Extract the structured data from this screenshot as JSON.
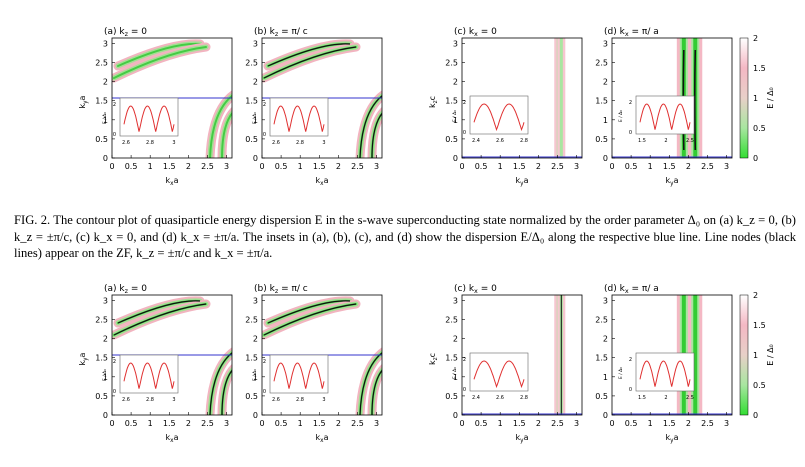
{
  "figures": [
    {
      "panels": [
        {
          "label": "(a) k",
          "sub": "z",
          "eq": " = 0",
          "xlabel": "k",
          "xsub": "x",
          "xunit": "a",
          "ylabel": "k",
          "ysub": "y",
          "yunit": "a",
          "xticks": [
            "0",
            "0.5",
            "1",
            "1.5",
            "2",
            "2.5",
            "3"
          ],
          "yticks": [
            "0",
            "0.5",
            "1",
            "1.5",
            "2",
            "2.5",
            "3"
          ],
          "type": "ab",
          "inset_xticks": [
            "2.6",
            "2.8",
            "3"
          ],
          "inset_yticks": [
            "0",
            "2"
          ],
          "inset_ylabel": "E / Δ₀"
        },
        {
          "label": "(b) k",
          "sub": "z",
          "eq": " = π/ c",
          "xlabel": "k",
          "xsub": "x",
          "xunit": "a",
          "ylabel": "",
          "ysub": "",
          "yunit": "",
          "xticks": [
            "0",
            "0.5",
            "1",
            "1.5",
            "2",
            "2.5",
            "3"
          ],
          "yticks": [
            "0",
            "0.5",
            "1",
            "1.5",
            "2",
            "2.5",
            "3"
          ],
          "type": "ab",
          "inset_xticks": [
            "2.6",
            "2.8",
            "3"
          ],
          "inset_yticks": [
            "0",
            "2"
          ],
          "inset_ylabel": "E / Δ₀"
        },
        {
          "label": "(c) k",
          "sub": "x",
          "eq": " = 0",
          "xlabel": "k",
          "xsub": "y",
          "xunit": "a",
          "ylabel": "k",
          "ysub": "z",
          "yunit": "c",
          "xticks": [
            "0",
            "0.5",
            "1",
            "1.5",
            "2",
            "2.5",
            "3"
          ],
          "yticks": [
            "0",
            "0.5",
            "1",
            "1.5",
            "2",
            "2.5",
            "3"
          ],
          "type": "c",
          "inset_xticks": [
            "2.4",
            "2.6",
            "2.8"
          ],
          "inset_yticks": [
            "0",
            "2"
          ],
          "inset_ylabel": "E / Δ₀"
        },
        {
          "label": "(d) k",
          "sub": "x",
          "eq": " = π/ a",
          "xlabel": "k",
          "xsub": "y",
          "xunit": "a",
          "ylabel": "",
          "ysub": "",
          "yunit": "",
          "xticks": [
            "0",
            "0.5",
            "1",
            "1.5",
            "2",
            "2.5",
            "3"
          ],
          "yticks": [
            "0",
            "0.5",
            "1",
            "1.5",
            "2",
            "2.5",
            "3"
          ],
          "type": "d",
          "inset_xticks": [
            "1.5",
            "2",
            "2.5"
          ],
          "inset_yticks": [
            "0",
            "2"
          ],
          "inset_ylabel": "E / Δ₀"
        }
      ]
    },
    {
      "panels": [
        {
          "label": "(a) k",
          "sub": "z",
          "eq": " = 0",
          "xlabel": "k",
          "xsub": "x",
          "xunit": "a",
          "ylabel": "k",
          "ysub": "y",
          "yunit": "a",
          "xticks": [
            "0",
            "0.5",
            "1",
            "1.5",
            "2",
            "2.5",
            "3"
          ],
          "yticks": [
            "0",
            "0.5",
            "1",
            "1.5",
            "2",
            "2.5",
            "3"
          ],
          "type": "ab",
          "inset_xticks": [
            "2.6",
            "2.8",
            "3"
          ],
          "inset_yticks": [
            "0",
            "2"
          ],
          "inset_ylabel": "E / Δ₀"
        },
        {
          "label": "(b) k",
          "sub": "z",
          "eq": " = π/ c",
          "xlabel": "k",
          "xsub": "x",
          "xunit": "a",
          "ylabel": "",
          "ysub": "",
          "yunit": "",
          "xticks": [
            "0",
            "0.5",
            "1",
            "1.5",
            "2",
            "2.5",
            "3"
          ],
          "yticks": [
            "0",
            "0.5",
            "1",
            "1.5",
            "2",
            "2.5",
            "3"
          ],
          "type": "ab",
          "inset_xticks": [
            "2.6",
            "2.8",
            "3"
          ],
          "inset_yticks": [
            "0",
            "2"
          ],
          "inset_ylabel": "E / Δ₀"
        },
        {
          "label": "(c) k",
          "sub": "x",
          "eq": " = 0",
          "xlabel": "k",
          "xsub": "y",
          "xunit": "a",
          "ylabel": "k",
          "ysub": "z",
          "yunit": "c",
          "xticks": [
            "0",
            "0.5",
            "1",
            "1.5",
            "2",
            "2.5",
            "3"
          ],
          "yticks": [
            "0",
            "0.5",
            "1",
            "1.5",
            "2",
            "2.5",
            "3"
          ],
          "type": "c",
          "inset_xticks": [
            "2.4",
            "2.6",
            "2.8"
          ],
          "inset_yticks": [
            "0",
            "2"
          ],
          "inset_ylabel": "E / Δ₀"
        },
        {
          "label": "(d) k",
          "sub": "x",
          "eq": " = π/ a",
          "xlabel": "k",
          "xsub": "y",
          "xunit": "a",
          "ylabel": "",
          "ysub": "",
          "yunit": "",
          "xticks": [
            "0",
            "0.5",
            "1",
            "1.5",
            "2",
            "2.5",
            "3"
          ],
          "yticks": [
            "0",
            "0.5",
            "1",
            "1.5",
            "2",
            "2.5",
            "3"
          ],
          "type": "d",
          "inset_xticks": [
            "1.5",
            "2",
            "2.5"
          ],
          "inset_yticks": [
            "0",
            "2"
          ],
          "inset_ylabel": "E / Δ₀"
        }
      ]
    }
  ],
  "colorbar": {
    "ticks": [
      "0",
      "0.5",
      "1",
      "1.5",
      "2"
    ],
    "label": "E / Δ₀",
    "colors": [
      "#33dd33",
      "#a8e6a0",
      "#e8d0c8",
      "#f4b8c4",
      "#ffffff"
    ]
  },
  "blue_line": {
    "ky_a": 1.5708,
    "color": "#3333cc"
  },
  "caption": {
    "line1": "FIG. 2. The contour plot of quasiparticle energy dispersion E in the s-wave superconducting state normalized by the order",
    "line2": "parameter Δ₀ on (a) k_z = 0, (b) k_z = ±π/c, (c) k_x = 0, and (d) k_x = ±π/a. The insets in (a), (b), (c), and (d) show the",
    "line3": "dispersion E/Δ₀ along the respective blue line. Line nodes (black lines) appear on the ZF, k_z = ±π/c and k_x = ±π/a."
  }
}
